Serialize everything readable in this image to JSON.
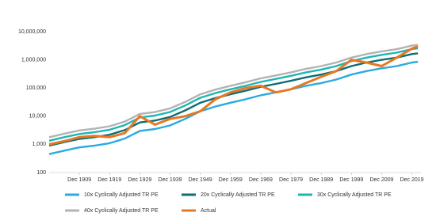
{
  "chart_data": {
    "type": "line",
    "log_y": true,
    "x": [
      1899,
      1904,
      1909,
      1914,
      1919,
      1924,
      1929,
      1934,
      1939,
      1944,
      1949,
      1954,
      1959,
      1964,
      1969,
      1974,
      1979,
      1984,
      1989,
      1994,
      1999,
      2004,
      2009,
      2014,
      2019,
      2021
    ],
    "xlim": [
      1899,
      2022
    ],
    "xticks": [
      {
        "value": 1909,
        "label": "Dec 1909"
      },
      {
        "value": 1919,
        "label": "Dec 1919"
      },
      {
        "value": 1929,
        "label": "Dec 1929"
      },
      {
        "value": 1939,
        "label": "Dec 1939"
      },
      {
        "value": 1949,
        "label": "Dec 1949"
      },
      {
        "value": 1959,
        "label": "Dec 1959"
      },
      {
        "value": 1969,
        "label": "Dec 1969"
      },
      {
        "value": 1979,
        "label": "Dec 1979"
      },
      {
        "value": 1989,
        "label": "Dec 1989"
      },
      {
        "value": 1999,
        "label": "Dec 1999"
      },
      {
        "value": 2009,
        "label": "Dec 2009"
      },
      {
        "value": 2019,
        "label": "Dec 2019"
      }
    ],
    "ylim": [
      100,
      10000000
    ],
    "yticks": [
      100,
      {
        "value": 1000,
        "label": "1,000"
      },
      {
        "value": 10000,
        "label": "10,000"
      },
      {
        "value": 100000,
        "label": "100,000"
      },
      {
        "value": 1000000,
        "label": "1,000,000"
      },
      {
        "value": 10000000,
        "label": "10,000,000"
      }
    ],
    "series": [
      {
        "name": "10x Cyclically Adjusted TR PE",
        "color": "#29abe2",
        "values": [
          450,
          600,
          780,
          900,
          1100,
          1600,
          3000,
          3500,
          4700,
          8000,
          15000,
          22000,
          30000,
          40000,
          55000,
          70000,
          90000,
          120000,
          150000,
          200000,
          300000,
          400000,
          500000,
          600000,
          800000,
          850000
        ]
      },
      {
        "name": "20x Cyclically Adjusted TR PE",
        "color": "#0e6e74",
        "values": [
          900,
          1200,
          1560,
          1800,
          2200,
          3200,
          6000,
          7000,
          9400,
          16000,
          30000,
          44000,
          60000,
          80000,
          110000,
          140000,
          180000,
          240000,
          300000,
          400000,
          600000,
          800000,
          1000000,
          1200000,
          1600000,
          1700000
        ]
      },
      {
        "name": "30x Cyclically Adjusted TR PE",
        "color": "#1fb5b5",
        "values": [
          1350,
          1800,
          2340,
          2700,
          3300,
          4800,
          9000,
          10500,
          14100,
          24000,
          45000,
          66000,
          90000,
          120000,
          165000,
          210000,
          270000,
          360000,
          450000,
          600000,
          900000,
          1200000,
          1500000,
          1800000,
          2400000,
          2550000
        ]
      },
      {
        "name": "40x Cyclically Adjusted TR PE",
        "color": "#b3b3b3",
        "values": [
          1800,
          2400,
          3120,
          3600,
          4400,
          6400,
          12000,
          14000,
          18800,
          32000,
          60000,
          88000,
          120000,
          160000,
          220000,
          280000,
          360000,
          480000,
          600000,
          800000,
          1200000,
          1600000,
          2000000,
          2400000,
          3200000,
          3400000
        ]
      },
      {
        "name": "Actual",
        "color": "#e87722",
        "values": [
          1000,
          1300,
          1800,
          2000,
          1800,
          2500,
          10000,
          5000,
          8000,
          10000,
          15000,
          40000,
          70000,
          100000,
          120000,
          70000,
          90000,
          150000,
          250000,
          400000,
          1000000,
          800000,
          600000,
          1200000,
          2500000,
          3000000
        ]
      }
    ]
  }
}
